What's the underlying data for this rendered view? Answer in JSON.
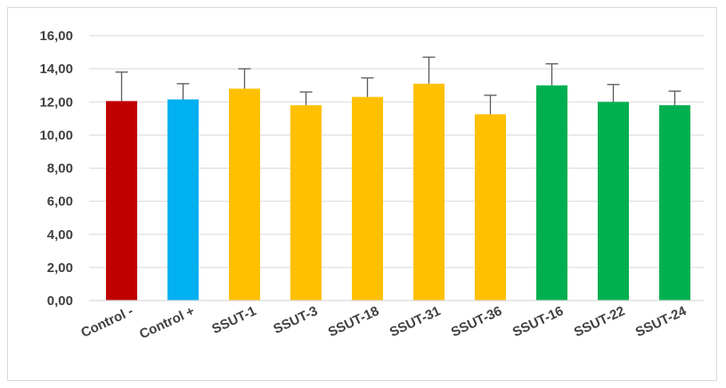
{
  "chart_data": {
    "type": "bar",
    "title": "",
    "xlabel": "",
    "ylabel": "",
    "ylim": [
      0,
      16
    ],
    "yticks": [
      "0,00",
      "2,00",
      "4,00",
      "6,00",
      "8,00",
      "10,00",
      "12,00",
      "14,00",
      "16,00"
    ],
    "grid": true,
    "categories": [
      "Control -",
      "Control +",
      "SSUT-1",
      "SSUT-3",
      "SSUT-18",
      "SSUT-31",
      "SSUT-36",
      "SSUT-16",
      "SSUT-22",
      "SSUT-24"
    ],
    "values": [
      12.05,
      12.15,
      12.8,
      11.8,
      12.3,
      13.1,
      11.25,
      13.0,
      12.0,
      11.8
    ],
    "errors": [
      1.75,
      0.95,
      1.2,
      0.8,
      1.15,
      1.6,
      1.15,
      1.3,
      1.05,
      0.85
    ],
    "colors": [
      "#c00000",
      "#00b0f0",
      "#ffc000",
      "#ffc000",
      "#ffc000",
      "#ffc000",
      "#ffc000",
      "#00b050",
      "#00b050",
      "#00b050"
    ]
  }
}
